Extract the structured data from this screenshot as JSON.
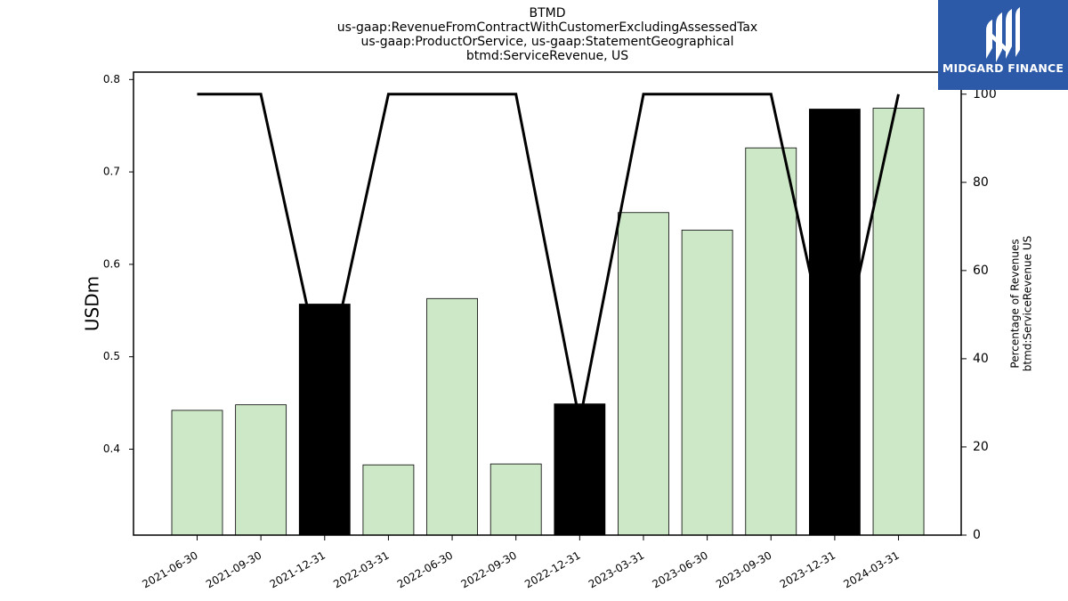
{
  "chart_data": {
    "type": "bar",
    "title_lines": [
      "BTMD",
      "us-gaap:RevenueFromContractWithCustomerExcludingAssessedTax",
      "us-gaap:ProductOrService, us-gaap:StatementGeographical",
      "btmd:ServiceRevenue, US"
    ],
    "ylabel": "USDm",
    "y2label_lines": [
      "Percentage of Revenues",
      "btmd:ServiceRevenue US"
    ],
    "categories": [
      "2021-06-30",
      "2021-09-30",
      "2021-12-31",
      "2022-03-31",
      "2022-06-30",
      "2022-09-30",
      "2022-12-31",
      "2023-03-31",
      "2023-06-30",
      "2023-09-30",
      "2023-12-31",
      "2024-03-31"
    ],
    "values": [
      0.442,
      0.448,
      0.557,
      0.383,
      0.563,
      0.384,
      0.449,
      0.656,
      0.637,
      0.726,
      0.768,
      0.769
    ],
    "highlight": [
      false,
      false,
      true,
      false,
      false,
      false,
      true,
      false,
      false,
      false,
      true,
      false
    ],
    "line_values": [
      100,
      100,
      33.6,
      100,
      100,
      100,
      25.8,
      100,
      100,
      100,
      33.9,
      100
    ],
    "ylim": [
      0.307,
      0.808
    ],
    "yticks": [
      0.4,
      0.5,
      0.6,
      0.7,
      0.8
    ],
    "ytick_labels": [
      "0.4",
      "0.5",
      "0.6",
      "0.7",
      "0.8"
    ],
    "y2lim": [
      0,
      105
    ],
    "y2ticks": [
      0,
      20,
      40,
      60,
      80,
      100
    ],
    "colors": {
      "bar": "#cce8c6",
      "bar_highlight": "#000000",
      "line": "#000000"
    }
  },
  "logo": {
    "text": "MIDGARD FINANCE"
  }
}
